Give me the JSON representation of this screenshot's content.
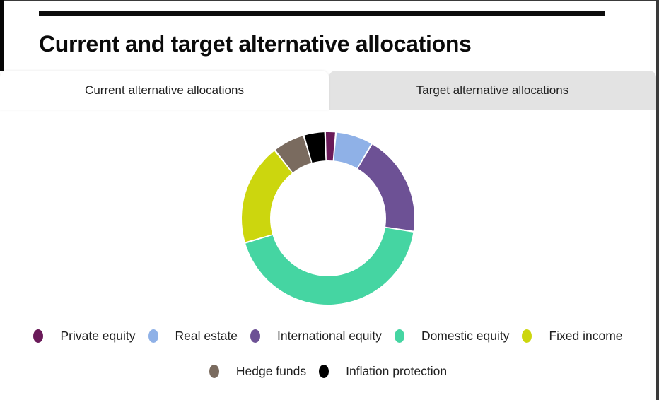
{
  "header": {
    "title": "Current and target alternative allocations"
  },
  "tabs": [
    {
      "label": "Current alternative allocations",
      "active": true
    },
    {
      "label": "Target alternative allocations",
      "active": false
    }
  ],
  "chart_data": {
    "type": "pie",
    "variant": "donut",
    "title": "Current alternative allocations",
    "categories": [
      "Private equity",
      "Real estate",
      "International equity",
      "Domestic equity",
      "Fixed income",
      "Hedge funds",
      "Inflation protection"
    ],
    "values": [
      2,
      7,
      19,
      43,
      19,
      6,
      4
    ],
    "unit": "percent",
    "colors": [
      "#6a1a59",
      "#8fb1e7",
      "#6d5195",
      "#45d5a2",
      "#ccd60e",
      "#7a6b5f",
      "#000000"
    ],
    "start_angle_deg": -2,
    "pad_angle_deg": 1.1,
    "outer_radius": 122,
    "inner_radius": 82,
    "data_labels": false,
    "legend_position": "bottom",
    "legend_rows": [
      [
        0,
        1,
        2,
        3,
        4
      ],
      [
        5,
        6
      ]
    ]
  },
  "frame": {
    "accent_color": "#060606",
    "border_color": "#3a3a3a",
    "inactive_tab_color": "#e3e3e3"
  }
}
